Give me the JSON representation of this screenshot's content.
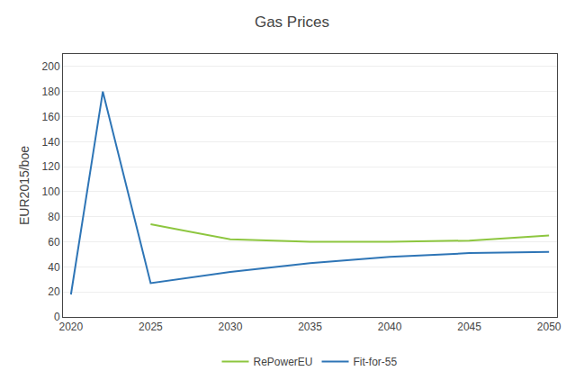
{
  "chart_data": {
    "type": "line",
    "title": "Gas Prices",
    "ylabel": "EUR2015/boe",
    "series": [
      {
        "name": "RePowerEU",
        "color": "#8dc63f",
        "x": [
          2025,
          2030,
          2035,
          2040,
          2045,
          2050
        ],
        "values": [
          74,
          62,
          60,
          60,
          61,
          65
        ]
      },
      {
        "name": "Fit-for-55",
        "color": "#2e75b6",
        "x": [
          2020,
          2022,
          2025,
          2030,
          2035,
          2040,
          2045,
          2050
        ],
        "values": [
          18,
          180,
          27,
          36,
          43,
          48,
          51,
          52
        ]
      }
    ],
    "xlim": [
      2019.5,
      2050.5
    ],
    "xticks": [
      2020,
      2025,
      2030,
      2035,
      2040,
      2045,
      2050
    ],
    "ylim": [
      0,
      210
    ],
    "yticks": [
      0,
      20,
      40,
      60,
      80,
      100,
      120,
      140,
      160,
      180,
      200
    ],
    "grid": "y",
    "legend": "bottom"
  }
}
